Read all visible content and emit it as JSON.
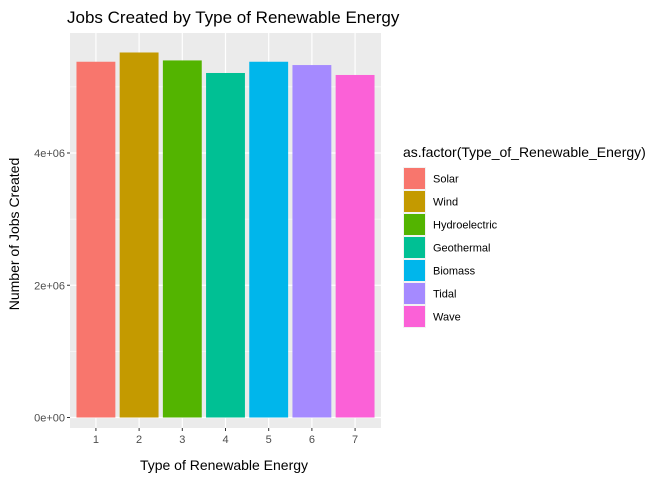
{
  "chart_data": {
    "type": "bar",
    "title": "Jobs Created by Type of Renewable Energy",
    "xlabel": "Type of Renewable Energy",
    "ylabel": "Number of Jobs Created",
    "categories": [
      "1",
      "2",
      "3",
      "4",
      "5",
      "6",
      "7"
    ],
    "values": [
      5380000,
      5520000,
      5400000,
      5210000,
      5380000,
      5330000,
      5180000
    ],
    "ylim": [
      0,
      5800000
    ],
    "yticks": [
      0,
      2000000,
      4000000
    ],
    "ytick_labels": [
      "0e+00",
      "2e+06",
      "4e+06"
    ],
    "grid": true,
    "legend": {
      "title": "as.factor(Type_of_Renewable_Energy)",
      "position": "right",
      "entries": [
        {
          "label": "Solar",
          "color": "#F8766D"
        },
        {
          "label": "Wind",
          "color": "#C49A00"
        },
        {
          "label": "Hydroelectric",
          "color": "#53B400"
        },
        {
          "label": "Geothermal",
          "color": "#00C094"
        },
        {
          "label": "Biomass",
          "color": "#00B6EB"
        },
        {
          "label": "Tidal",
          "color": "#A58AFF"
        },
        {
          "label": "Wave",
          "color": "#FB61D7"
        }
      ]
    },
    "panel_background": "#EBEBEB",
    "grid_color": "#FFFFFF"
  }
}
